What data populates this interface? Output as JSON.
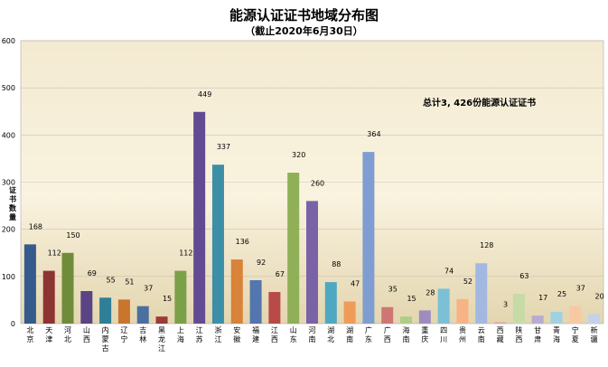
{
  "chart_data": {
    "type": "bar",
    "title": "能源认证证书地域分布图",
    "subtitle": "（截止2020年6月30日）",
    "ylabel": "证书数量",
    "xlabel": "",
    "ylim": [
      0,
      600
    ],
    "yticks": [
      0,
      100,
      200,
      300,
      400,
      500,
      600
    ],
    "grid": true,
    "annotation": "总计3, 426份能源认证证书",
    "categories": [
      "北京",
      "天津",
      "河北",
      "山西",
      "内蒙古",
      "辽宁",
      "吉林",
      "黑龙江",
      "上海",
      "江苏",
      "浙江",
      "安徽",
      "福建",
      "江西",
      "山东",
      "河南",
      "湖北",
      "湖南",
      "广东",
      "广西",
      "海南",
      "重庆",
      "四川",
      "贵州",
      "云南",
      "西藏",
      "陕西",
      "甘肃",
      "青海",
      "宁夏",
      "新疆"
    ],
    "values": [
      168,
      112,
      150,
      69,
      55,
      51,
      37,
      15,
      112,
      449,
      337,
      136,
      92,
      67,
      320,
      260,
      88,
      47,
      364,
      35,
      15,
      28,
      74,
      52,
      128,
      3,
      63,
      17,
      25,
      37,
      20
    ],
    "colors": [
      "#355a8c",
      "#8c3432",
      "#6f8c3a",
      "#5a4483",
      "#2e7f97",
      "#c9752c",
      "#4a70a0",
      "#9a3b39",
      "#7aa048",
      "#634b93",
      "#3c8fa6",
      "#d8823a",
      "#5276ad",
      "#b84a47",
      "#8fb056",
      "#7a62a6",
      "#4fa8c2",
      "#ef9b5a",
      "#7f9dd0",
      "#cf7674",
      "#b1cc87",
      "#9d8cbd",
      "#7bc1d6",
      "#f7b383",
      "#a3b8e0",
      "#e0a5a3",
      "#c6dba6",
      "#b8abd2",
      "#9fd1e1",
      "#f8c8a3",
      "#c3d1ec"
    ]
  }
}
